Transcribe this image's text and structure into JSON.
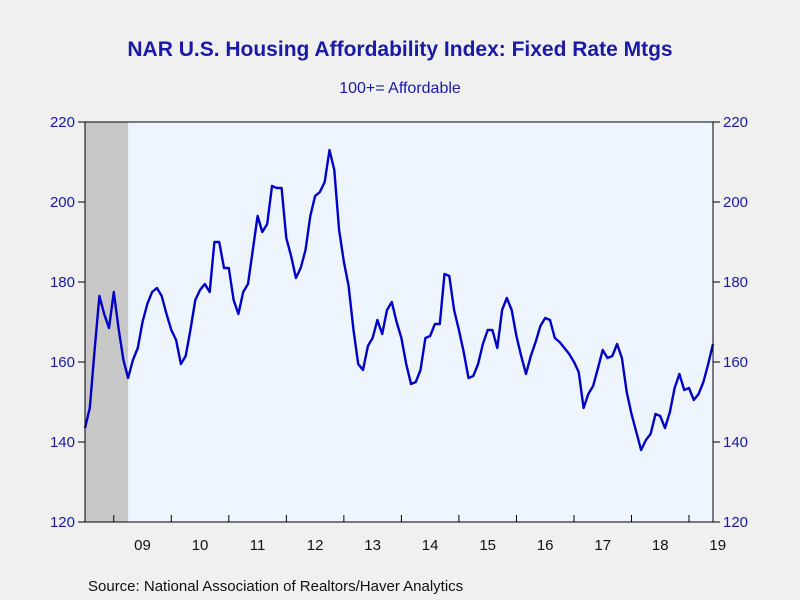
{
  "chart_data": {
    "type": "line",
    "title": "NAR U.S. Housing Affordability Index: Fixed Rate Mtgs",
    "subtitle": "100+= Affordable",
    "source": "Source:  National Association of Realtors/Haver Analytics",
    "xlabel": "",
    "ylabel": "",
    "ylim": [
      120,
      220
    ],
    "y_ticks": [
      120,
      140,
      160,
      180,
      200,
      220
    ],
    "x_range": [
      2008.5,
      2019.417
    ],
    "x_tick_labels": [
      "09",
      "10",
      "11",
      "12",
      "13",
      "14",
      "15",
      "16",
      "17",
      "18",
      "19"
    ],
    "grid": false,
    "legend": "none",
    "recession_shading": {
      "from": 2008.5,
      "to": 2009.25,
      "color": "#c8c8c8"
    },
    "series": [
      {
        "color": "#0000c8",
        "x": [
          2008.5,
          2008.583,
          2008.667,
          2008.75,
          2008.833,
          2008.917,
          2009.0,
          2009.083,
          2009.167,
          2009.25,
          2009.333,
          2009.417,
          2009.5,
          2009.583,
          2009.667,
          2009.75,
          2009.833,
          2009.917,
          2010.0,
          2010.083,
          2010.167,
          2010.25,
          2010.333,
          2010.417,
          2010.5,
          2010.583,
          2010.667,
          2010.75,
          2010.833,
          2010.917,
          2011.0,
          2011.083,
          2011.167,
          2011.25,
          2011.333,
          2011.417,
          2011.5,
          2011.583,
          2011.667,
          2011.75,
          2011.833,
          2011.917,
          2012.0,
          2012.083,
          2012.167,
          2012.25,
          2012.333,
          2012.417,
          2012.5,
          2012.583,
          2012.667,
          2012.75,
          2012.833,
          2012.917,
          2013.0,
          2013.083,
          2013.167,
          2013.25,
          2013.333,
          2013.417,
          2013.5,
          2013.583,
          2013.667,
          2013.75,
          2013.833,
          2013.917,
          2014.0,
          2014.083,
          2014.167,
          2014.25,
          2014.333,
          2014.417,
          2014.5,
          2014.583,
          2014.667,
          2014.75,
          2014.833,
          2014.917,
          2015.0,
          2015.083,
          2015.167,
          2015.25,
          2015.333,
          2015.417,
          2015.5,
          2015.583,
          2015.667,
          2015.75,
          2015.833,
          2015.917,
          2016.0,
          2016.083,
          2016.167,
          2016.25,
          2016.333,
          2016.417,
          2016.5,
          2016.583,
          2016.667,
          2016.75,
          2016.833,
          2016.917,
          2017.0,
          2017.083,
          2017.167,
          2017.25,
          2017.333,
          2017.417,
          2017.5,
          2017.583,
          2017.667,
          2017.75,
          2017.833,
          2017.917,
          2018.0,
          2018.083,
          2018.167,
          2018.25,
          2018.333,
          2018.417,
          2018.5,
          2018.583,
          2018.667,
          2018.75,
          2018.833,
          2018.917,
          2019.0,
          2019.083,
          2019.167,
          2019.25,
          2019.333,
          2019.417
        ],
        "values": [
          143.5,
          148.5,
          163,
          176.5,
          172,
          168.5,
          177.5,
          168.5,
          160.5,
          156,
          160.5,
          163.5,
          170,
          174.5,
          177.5,
          178.5,
          176.5,
          172,
          168,
          165.5,
          159.5,
          161.5,
          168,
          175.5,
          178,
          179.5,
          177.5,
          190,
          190,
          183.5,
          183.5,
          175.5,
          172,
          177.5,
          179.5,
          188,
          196.5,
          192.5,
          194.5,
          204,
          203.5,
          203.5,
          191,
          186.5,
          181,
          183.5,
          188,
          196.5,
          201.5,
          202.5,
          205,
          213,
          208,
          193,
          185,
          179,
          168,
          159.5,
          158,
          164,
          166,
          170.5,
          167,
          173,
          175,
          170,
          166,
          159.5,
          154.5,
          155,
          158,
          166,
          166.5,
          169.5,
          169.5,
          182,
          181.5,
          173,
          168,
          162.5,
          156,
          156.5,
          159.5,
          164.5,
          168,
          168,
          163.5,
          173,
          176,
          173,
          166.5,
          161.5,
          157,
          161.5,
          165,
          169,
          171,
          170.5,
          166,
          165,
          163.5,
          162,
          160,
          157.5,
          148.5,
          152,
          154,
          158.5,
          163,
          161,
          161.5,
          164.5,
          161,
          152.5,
          147,
          142.5,
          138,
          140.5,
          142,
          147,
          146.5,
          143.5,
          147.5,
          153.5,
          157,
          153,
          153.5,
          150.5,
          152,
          155,
          159.5,
          164.5
        ]
      }
    ]
  }
}
